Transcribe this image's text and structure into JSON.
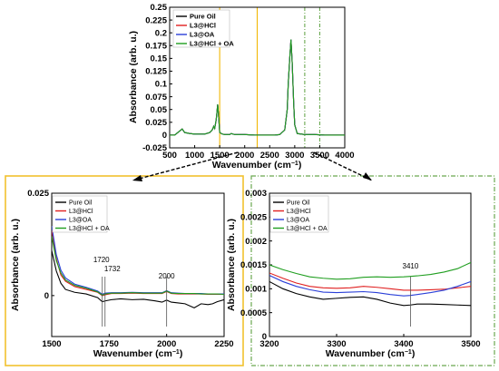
{
  "chart_data": [
    {
      "type": "line",
      "panel": "top",
      "xlabel": "Wavenumber (cm",
      "xlabel_sup": "−1",
      "xlabel_close": ")",
      "ylabel": "Absorbance (arb. u.)",
      "xlim": [
        500,
        4000
      ],
      "ylim": [
        -0.025,
        0.25
      ],
      "xticks": [
        "500",
        "1000",
        "1500",
        "2000",
        "2500",
        "3000",
        "3500",
        "4000"
      ],
      "yticks": [
        "-0.025",
        "0",
        "0.025",
        "0.05",
        "0.075",
        "0.1",
        "0.125",
        "0.15",
        "0.175",
        "0.2",
        "0.225",
        "0.25"
      ],
      "legend_position": "top-left",
      "highlight_regions": [
        [
          1500,
          2250
        ],
        [
          3200,
          3500
        ]
      ],
      "series": [
        {
          "name": "Pure Oil",
          "color": "#000000"
        },
        {
          "name": "L3@HCl",
          "color": "#e02020"
        },
        {
          "name": "L3@OA",
          "color": "#2a3fd8"
        },
        {
          "name": "L3@HCl + OA",
          "color": "#1f9e1f"
        }
      ],
      "x": [
        500,
        600,
        700,
        750,
        800,
        900,
        1000,
        1100,
        1200,
        1300,
        1350,
        1380,
        1400,
        1430,
        1460,
        1480,
        1500,
        1550,
        1600,
        1700,
        1730,
        1800,
        2000,
        2200,
        2400,
        2600,
        2700,
        2800,
        2850,
        2870,
        2900,
        2925,
        2950,
        2980,
        3000,
        3050,
        3200,
        3400,
        3600,
        3800,
        4000
      ],
      "values": [
        0.0,
        0.0,
        0.008,
        0.012,
        0.005,
        0.003,
        0.002,
        0.002,
        0.002,
        0.005,
        0.01,
        0.017,
        0.013,
        0.03,
        0.06,
        0.035,
        0.005,
        0.002,
        0.001,
        0.001,
        0.003,
        0.001,
        0.001,
        0.0,
        0.0,
        0.0,
        0.001,
        0.01,
        0.05,
        0.1,
        0.15,
        0.187,
        0.14,
        0.06,
        0.02,
        0.003,
        0.001,
        0.001,
        0.0,
        0.0,
        0.0
      ]
    },
    {
      "type": "line",
      "panel": "bottom-left",
      "xlabel": "Wavenumber (cm",
      "xlabel_sup": "−1",
      "xlabel_close": ")",
      "ylabel": "Absorbance (arb. u.)",
      "xlim": [
        1500,
        2250
      ],
      "ylim": [
        -0.01,
        0.025
      ],
      "xticks": [
        "1500",
        "1750",
        "2000",
        "2250"
      ],
      "yticks": [
        "0",
        "0.025"
      ],
      "legend_position": "top-left",
      "annotations": [
        {
          "x": 1720,
          "label": "1720"
        },
        {
          "x": 1732,
          "label": "1732"
        },
        {
          "x": 2000,
          "label": "2000"
        }
      ],
      "x": [
        1500,
        1520,
        1540,
        1560,
        1600,
        1650,
        1700,
        1720,
        1732,
        1760,
        1800,
        1850,
        1900,
        1950,
        1980,
        2000,
        2020,
        2050,
        2080,
        2120,
        2150,
        2180,
        2200,
        2220,
        2250
      ],
      "series": [
        {
          "name": "Pure Oil",
          "color": "#000000",
          "values": [
            0.011,
            0.006,
            0.003,
            0.0015,
            0.0008,
            0.0004,
            -0.0005,
            -0.0015,
            -0.0013,
            -0.001,
            -0.0008,
            -0.001,
            -0.0009,
            -0.0013,
            -0.0016,
            -0.0011,
            -0.0016,
            -0.0018,
            -0.002,
            -0.003,
            -0.002,
            -0.0022,
            -0.002,
            -0.0015,
            -0.001
          ]
        },
        {
          "name": "L3@HCl",
          "color": "#e02020",
          "values": [
            0.016,
            0.009,
            0.005,
            0.0035,
            0.0022,
            0.0015,
            0.0008,
            0.0,
            0.0002,
            0.0005,
            0.0005,
            0.0006,
            0.0005,
            0.0005,
            0.0005,
            0.001,
            0.0005,
            0.0004,
            0.0004,
            0.0004,
            0.0004,
            0.0003,
            0.0003,
            0.0003,
            0.0003
          ]
        },
        {
          "name": "L3@OA",
          "color": "#2a3fd8",
          "values": [
            0.017,
            0.01,
            0.0062,
            0.0043,
            0.0028,
            0.002,
            0.0011,
            0.0003,
            0.0006,
            0.0007,
            0.0007,
            0.0008,
            0.0007,
            0.0007,
            0.0007,
            0.0012,
            0.0007,
            0.0006,
            0.0005,
            0.0005,
            0.0005,
            0.0004,
            0.0004,
            0.0004,
            0.0004
          ]
        },
        {
          "name": "L3@HCl + OA",
          "color": "#1f9e1f",
          "values": [
            0.0145,
            0.0085,
            0.0055,
            0.0038,
            0.0025,
            0.0018,
            0.0009,
            0.0001,
            0.0004,
            0.0006,
            0.0006,
            0.0007,
            0.0006,
            0.0006,
            0.0006,
            0.0011,
            0.0006,
            0.0005,
            0.0005,
            0.0005,
            0.0004,
            0.0004,
            0.0004,
            0.0004,
            0.0003
          ]
        }
      ]
    },
    {
      "type": "line",
      "panel": "bottom-right",
      "xlabel": "Wavenumber (cm",
      "xlabel_sup": "−1",
      "xlabel_close": ")",
      "ylabel": "Absorbance (arb. u.)",
      "xlim": [
        3200,
        3500
      ],
      "ylim": [
        0,
        0.003
      ],
      "xticks": [
        "3200",
        "3300",
        "3400",
        "3500"
      ],
      "yticks": [
        "0",
        "0.0005",
        "0.001",
        "0.0015",
        "0.002",
        "0.0025",
        "0.003"
      ],
      "legend_position": "top-left",
      "annotations": [
        {
          "x": 3410,
          "label": "3410"
        }
      ],
      "x": [
        3200,
        3220,
        3240,
        3260,
        3280,
        3300,
        3320,
        3340,
        3360,
        3380,
        3400,
        3410,
        3420,
        3440,
        3460,
        3480,
        3500
      ],
      "series": [
        {
          "name": "Pure Oil",
          "color": "#000000",
          "values": [
            0.00115,
            0.001,
            0.0009,
            0.00083,
            0.00078,
            0.0008,
            0.00082,
            0.00083,
            0.00078,
            0.0007,
            0.00065,
            0.00066,
            0.00068,
            0.00068,
            0.00067,
            0.00066,
            0.00065
          ]
        },
        {
          "name": "L3@HCl",
          "color": "#e02020",
          "values": [
            0.00133,
            0.00122,
            0.00112,
            0.00105,
            0.00102,
            0.00101,
            0.00102,
            0.00105,
            0.00103,
            0.001,
            0.00097,
            0.00097,
            0.00097,
            0.00098,
            0.00099,
            0.00102,
            0.00105
          ]
        },
        {
          "name": "L3@OA",
          "color": "#2a3fd8",
          "values": [
            0.00128,
            0.00115,
            0.00105,
            0.00098,
            0.00093,
            0.00092,
            0.00093,
            0.00094,
            0.00092,
            0.00088,
            0.00085,
            0.00086,
            0.00088,
            0.00092,
            0.00097,
            0.00105,
            0.00115
          ]
        },
        {
          "name": "L3@HCl + OA",
          "color": "#1f9e1f",
          "values": [
            0.0015,
            0.0014,
            0.00132,
            0.00125,
            0.00122,
            0.0012,
            0.00121,
            0.00124,
            0.00125,
            0.00124,
            0.00125,
            0.00126,
            0.00127,
            0.0013,
            0.00135,
            0.00142,
            0.00155
          ]
        }
      ]
    }
  ]
}
